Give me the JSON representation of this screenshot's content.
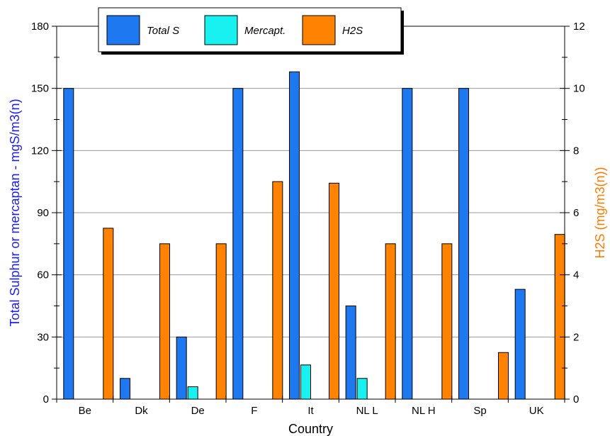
{
  "chart_data": {
    "type": "bar",
    "categories": [
      "Be",
      "Dk",
      "De",
      "F",
      "It",
      "NL L",
      "NL H",
      "Sp",
      "UK"
    ],
    "series": [
      {
        "name": "Total S",
        "axis": "left",
        "color": "#1e78f0",
        "values": [
          150,
          10,
          30,
          150,
          158,
          45,
          150,
          150,
          53
        ]
      },
      {
        "name": "Mercapt.",
        "axis": "left",
        "color": "#19f0f0",
        "values": [
          0,
          0,
          6,
          0,
          16.5,
          10,
          0,
          0,
          0
        ]
      },
      {
        "name": "H2S",
        "axis": "right",
        "color": "#ff8200",
        "values": [
          5.5,
          5,
          5,
          7,
          6.95,
          5,
          5,
          1.5,
          5.3
        ]
      }
    ],
    "xlabel": "Country",
    "ylabel": "Total Sulphur or mercaptan - mgS/m3(n)",
    "y2label": "H2S (mg/m3(n))",
    "ylim": [
      0,
      180
    ],
    "y2lim": [
      0,
      12
    ],
    "yticks": [
      "0",
      "30",
      "60",
      "90",
      "120",
      "150",
      "180"
    ],
    "y2ticks": [
      "0",
      "2",
      "4",
      "6",
      "8",
      "10",
      "12"
    ],
    "grid": true,
    "legend_position": "top",
    "ylabel_color": "#1a1aff",
    "y2label_color": "#ff7a00"
  }
}
